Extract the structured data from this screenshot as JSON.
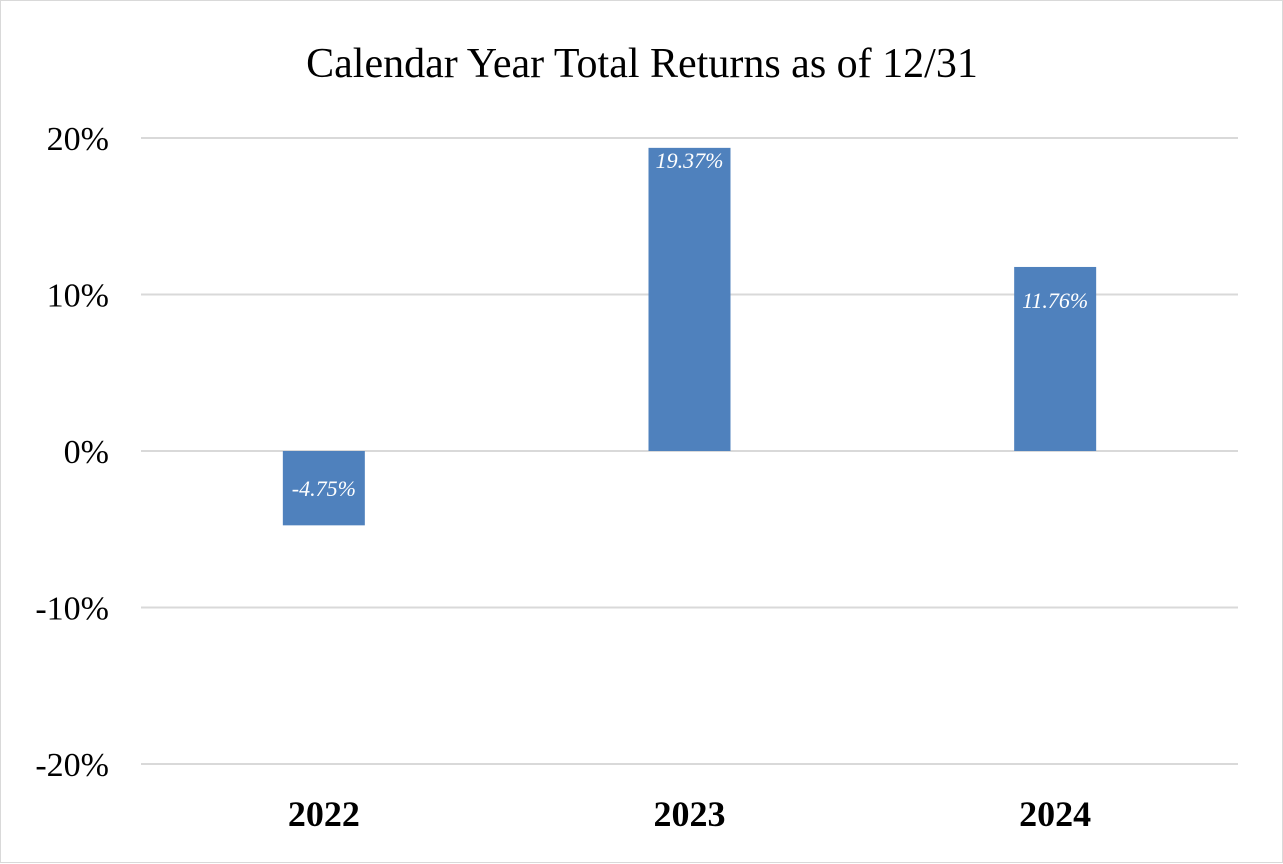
{
  "chart_data": {
    "type": "bar",
    "title": "Calendar Year Total Returns as of 12/31",
    "categories": [
      "2022",
      "2023",
      "2024"
    ],
    "values": [
      -4.75,
      19.37,
      11.76
    ],
    "data_labels": [
      "-4.75%",
      "19.37%",
      "11.76%"
    ],
    "ylim": [
      -20,
      20
    ],
    "yticks": [
      20,
      10,
      0,
      -10,
      -20
    ],
    "ytick_labels": [
      "20%",
      "10%",
      "0%",
      "-10%",
      "-20%"
    ],
    "grid": true,
    "legend": "none",
    "colors": {
      "bar": "#4f81bd",
      "grid": "#d9d9d9",
      "text": "#000000",
      "data_label": "#ffffff"
    }
  }
}
